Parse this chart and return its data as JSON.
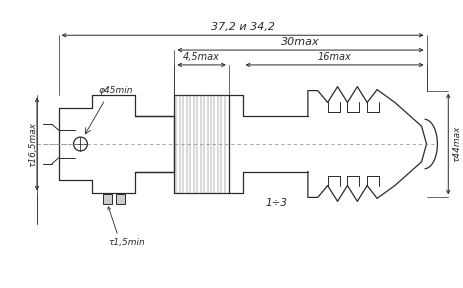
{
  "bg_color": "#ffffff",
  "line_color": "#2a2a2a",
  "dim_color": "#2a2a2a",
  "annotations": {
    "dim1": "37,2 и 34,2",
    "dim2": "30max",
    "dim3": "4,5max",
    "dim4": "16max",
    "dim5": "φ45min",
    "dim6": "τ16,5max",
    "dim7": "τ44max",
    "dim8": "τ1,5min",
    "dim9": "1÷3"
  },
  "figsize": [
    4.63,
    2.88
  ],
  "dpi": 100
}
